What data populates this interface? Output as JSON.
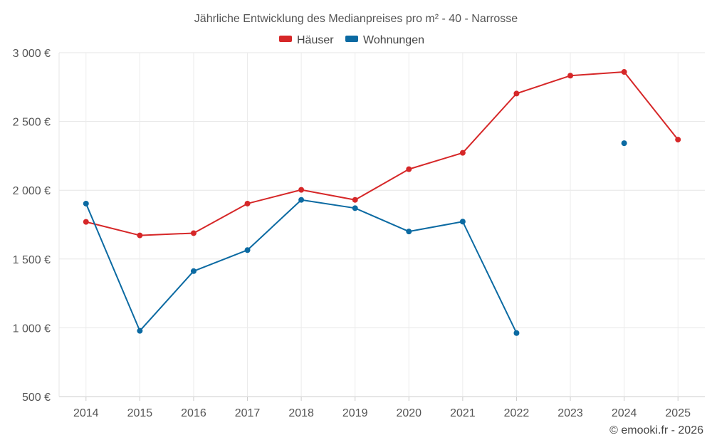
{
  "chart_data": {
    "type": "line",
    "title": "Jährliche Entwicklung des Medianpreises pro m² - 40 - Narrosse",
    "categories": [
      "2014",
      "2015",
      "2016",
      "2017",
      "2018",
      "2019",
      "2020",
      "2021",
      "2022",
      "2023",
      "2024",
      "2025"
    ],
    "ylim": [
      500,
      3000
    ],
    "yticks": [
      500,
      1000,
      1500,
      2000,
      2500,
      3000
    ],
    "ytick_labels": [
      "500 €",
      "1 000 €",
      "1 500 €",
      "2 000 €",
      "2 500 €",
      "3 000 €"
    ],
    "grid": true,
    "legend_position": "top-center",
    "series": [
      {
        "name": "Häuser",
        "color": "#d62728",
        "values": [
          1770,
          1672,
          1688,
          1903,
          2003,
          1930,
          2153,
          2272,
          2703,
          2833,
          2860,
          2368
        ]
      },
      {
        "name": "Wohnungen",
        "color": "#0b6aa2",
        "values": [
          1903,
          978,
          1412,
          1565,
          1930,
          1870,
          1700,
          1772,
          962,
          null,
          2342,
          null
        ]
      }
    ]
  },
  "credit": "© emooki.fr - 2026"
}
